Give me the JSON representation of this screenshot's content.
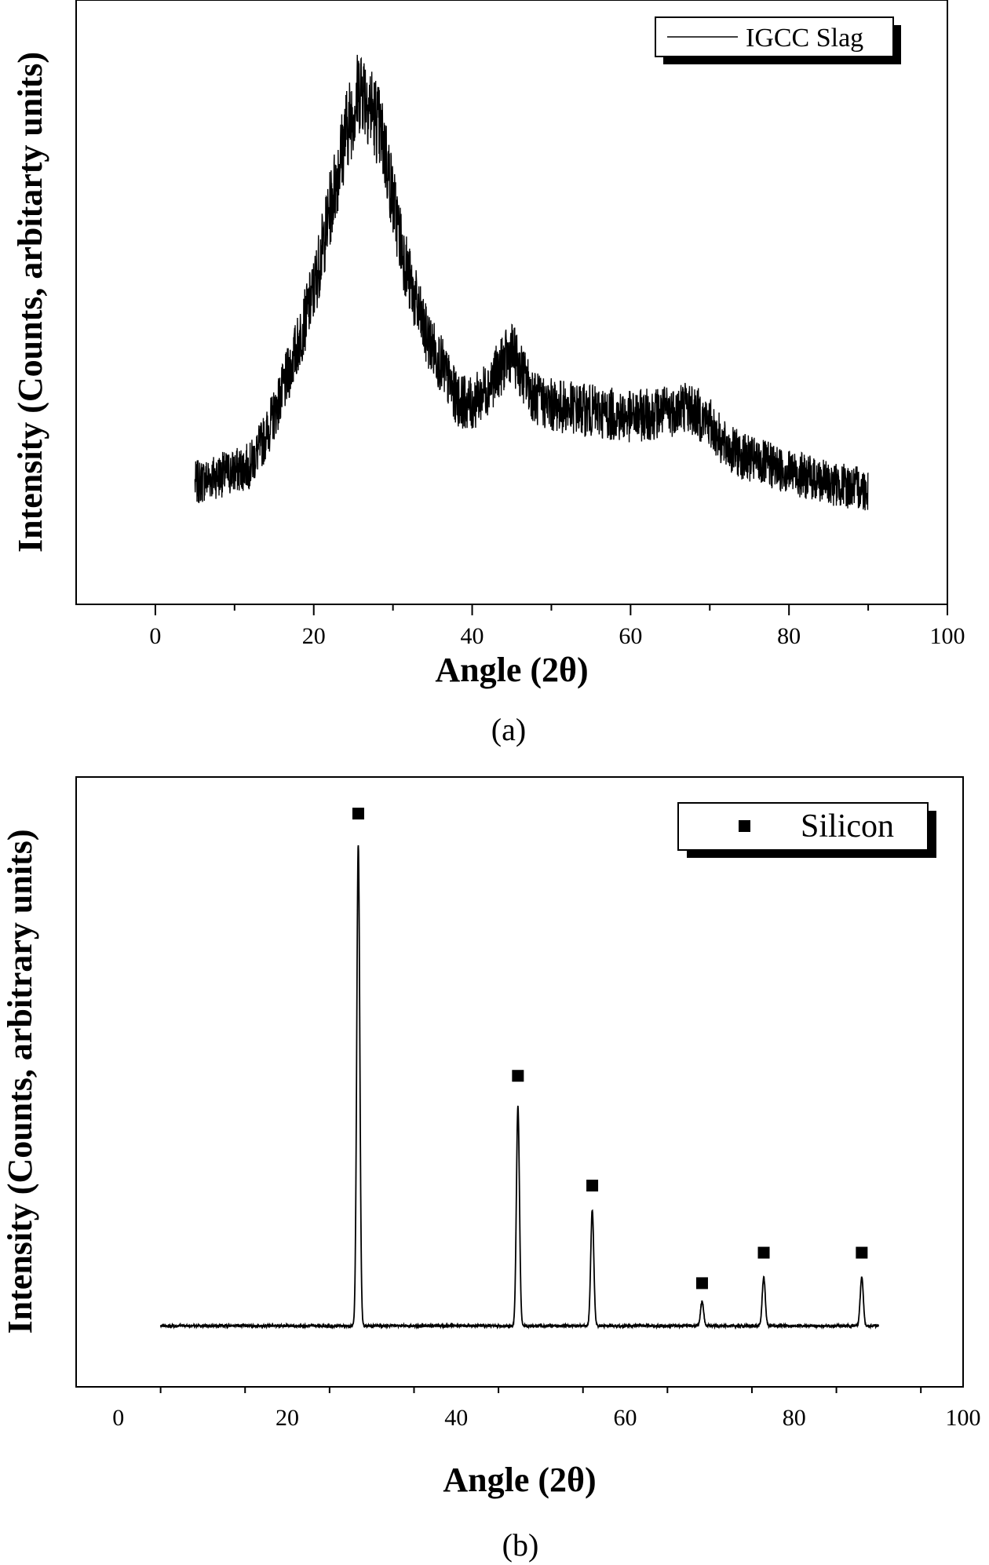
{
  "chart_data": [
    {
      "type": "line",
      "panel_label": "(a)",
      "xlabel": "Angle (2θ)",
      "ylabel": "Intensity (Counts, arbitarty units)",
      "xlim": [
        -10,
        100
      ],
      "ylim": [
        0,
        1
      ],
      "xticks": [
        0,
        20,
        40,
        60,
        80,
        100
      ],
      "grid": false,
      "legend": {
        "position": "top-right",
        "entries": [
          {
            "label": "IGCC Slag",
            "marker": "line"
          }
        ]
      },
      "series": [
        {
          "name": "IGCC Slag",
          "x": [
            5,
            7,
            10,
            12,
            14,
            16,
            18,
            20,
            22,
            24,
            25,
            26,
            27,
            28,
            29,
            30,
            31,
            32,
            34,
            36,
            38,
            40,
            42,
            44,
            45,
            46,
            48,
            50,
            55,
            60,
            65,
            67,
            70,
            72,
            75,
            80,
            85,
            90
          ],
          "y": [
            0.2,
            0.21,
            0.22,
            0.23,
            0.28,
            0.35,
            0.43,
            0.52,
            0.65,
            0.78,
            0.82,
            0.86,
            0.83,
            0.8,
            0.75,
            0.67,
            0.6,
            0.54,
            0.45,
            0.4,
            0.34,
            0.33,
            0.36,
            0.4,
            0.42,
            0.39,
            0.34,
            0.33,
            0.32,
            0.31,
            0.32,
            0.33,
            0.3,
            0.26,
            0.24,
            0.22,
            0.2,
            0.19
          ]
        }
      ]
    },
    {
      "type": "line",
      "panel_label": "(b)",
      "xlabel": "Angle (2θ)",
      "ylabel": "Intensity (Counts, arbitrary units)",
      "xlim": [
        -5,
        100
      ],
      "ylim": [
        0,
        1
      ],
      "xticks": [
        0,
        20,
        40,
        60,
        80,
        100
      ],
      "grid": false,
      "legend": {
        "position": "top-right",
        "entries": [
          {
            "label": "Silicon",
            "marker": "square"
          }
        ]
      },
      "series": [
        {
          "name": "Silicon",
          "x_range": [
            5,
            90
          ],
          "baseline": 0.1,
          "peaks": [
            {
              "x": 28.4,
              "y": 0.89
            },
            {
              "x": 47.3,
              "y": 0.46
            },
            {
              "x": 56.1,
              "y": 0.29
            },
            {
              "x": 69.1,
              "y": 0.14
            },
            {
              "x": 76.4,
              "y": 0.18
            },
            {
              "x": 88.0,
              "y": 0.18
            }
          ]
        }
      ],
      "annotations": [
        {
          "marker": "square",
          "x": 28.4,
          "y": 0.94
        },
        {
          "marker": "square",
          "x": 47.3,
          "y": 0.51
        },
        {
          "marker": "square",
          "x": 56.1,
          "y": 0.33
        },
        {
          "marker": "square",
          "x": 69.1,
          "y": 0.17
        },
        {
          "marker": "square",
          "x": 76.4,
          "y": 0.22
        },
        {
          "marker": "square",
          "x": 88.0,
          "y": 0.22
        }
      ]
    }
  ]
}
